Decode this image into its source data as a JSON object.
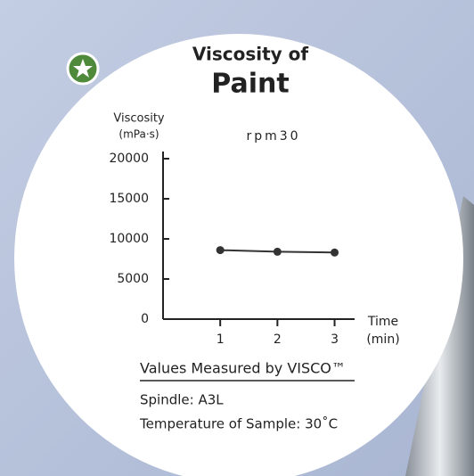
{
  "chart_data": {
    "type": "line",
    "title_lines": [
      "Viscosity of",
      "Paint"
    ],
    "subtitle": "rpm30",
    "ylabel_lines": [
      "Viscosity",
      "(mPa·s)"
    ],
    "xlabel_lines": [
      "Time",
      "(min)"
    ],
    "x": [
      1,
      2,
      3
    ],
    "series": [
      {
        "name": "rpm30",
        "color": "#333333",
        "values": [
          8600,
          8400,
          8300
        ]
      }
    ],
    "xlim": [
      0,
      3.35
    ],
    "xticks": [
      1,
      2,
      3
    ],
    "ylim": [
      0,
      20000
    ],
    "yticks": [
      0,
      5000,
      10000,
      15000,
      20000
    ],
    "annotations": [
      "Values Measured by VISCO™",
      "Spindle: A3L",
      "Temperature of Sample: 30˚C"
    ],
    "title_color": "#5a8f3c"
  }
}
